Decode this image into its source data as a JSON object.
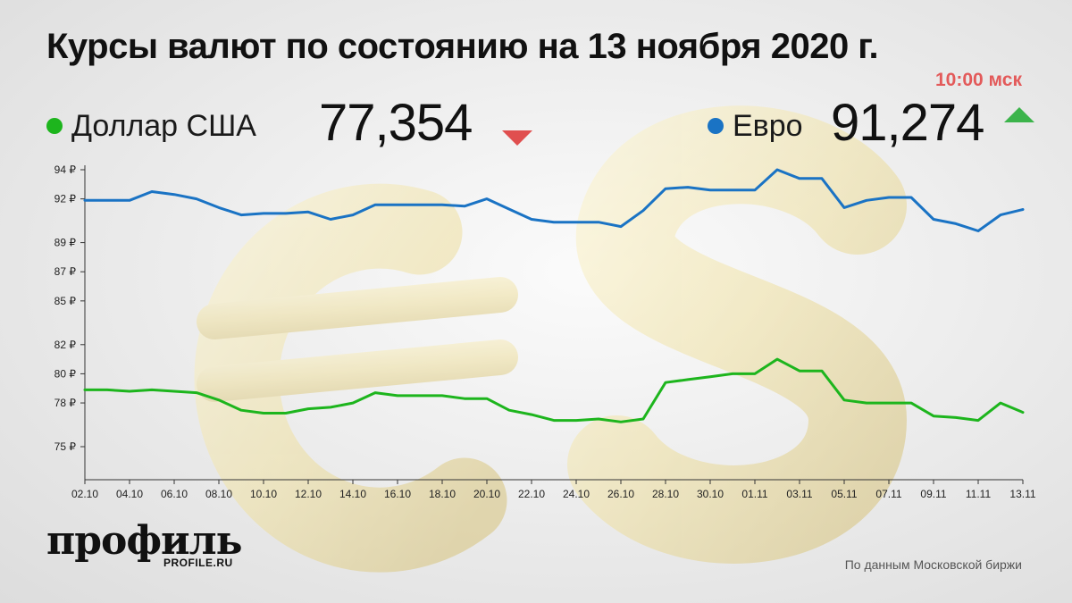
{
  "header": {
    "title": "Курсы валют по состоянию на 13 ноября 2020 г.",
    "time": "10:00 мск"
  },
  "legend": {
    "usd": {
      "name": "Доллар США",
      "value": "77,354",
      "trend": "down",
      "color": "#1db51d"
    },
    "eur": {
      "name": "Евро",
      "value": "91,274",
      "trend": "up",
      "color": "#1a73c4"
    }
  },
  "colors": {
    "down": "#e04f4f",
    "up": "#3cb44b",
    "usd_line": "#1db51d",
    "eur_line": "#1a73c4",
    "time": "#e35a5a"
  },
  "footer": {
    "logo": "профиль",
    "logo_sub": "PROFILE.RU",
    "source": "По данным Московской биржи"
  },
  "chart_data": {
    "type": "line",
    "title": "Курсы валют по состоянию на 13 ноября 2020 г.",
    "xlabel": "",
    "ylabel": "",
    "y_ticks": [
      "94 ₽",
      "92 ₽",
      "89 ₽",
      "87 ₽",
      "85 ₽",
      "82 ₽",
      "80 ₽",
      "78 ₽",
      "75 ₽"
    ],
    "y_tick_values": [
      94,
      92,
      89,
      87,
      85,
      82,
      80,
      78,
      75
    ],
    "x_tick_labels": [
      "02.10",
      "04.10",
      "06.10",
      "08.10",
      "10.10",
      "12.10",
      "14.10",
      "16.10",
      "18.10",
      "20.10",
      "22.10",
      "24.10",
      "26.10",
      "28.10",
      "30.10",
      "01.11",
      "03.11",
      "05.11",
      "07.11",
      "09.11",
      "11.11",
      "13.11"
    ],
    "ylim": [
      73,
      95
    ],
    "grid": false,
    "series": [
      {
        "name": "Евро",
        "values": [
          91.9,
          91.9,
          91.9,
          92.5,
          92.3,
          92.0,
          91.4,
          90.9,
          91.0,
          91.0,
          91.1,
          90.6,
          90.9,
          91.6,
          91.6,
          91.6,
          91.6,
          91.5,
          92.0,
          91.3,
          90.6,
          90.4,
          90.4,
          90.4,
          90.1,
          91.2,
          92.7,
          92.8,
          92.6,
          92.6,
          92.6,
          94.0,
          93.4,
          93.4,
          91.4,
          91.9,
          92.1,
          92.1,
          90.6,
          90.3,
          89.8,
          90.9,
          91.274
        ]
      },
      {
        "name": "Доллар США",
        "values": [
          78.9,
          78.9,
          78.8,
          78.9,
          78.8,
          78.7,
          78.2,
          77.5,
          77.3,
          77.3,
          77.6,
          77.7,
          78.0,
          78.7,
          78.5,
          78.5,
          78.5,
          78.3,
          78.3,
          77.5,
          77.2,
          76.8,
          76.8,
          76.9,
          76.7,
          76.9,
          79.4,
          79.6,
          79.8,
          80.0,
          80.0,
          81.0,
          80.2,
          80.2,
          78.2,
          78.0,
          78.0,
          78.0,
          77.1,
          77.0,
          76.8,
          78.0,
          77.354
        ]
      }
    ]
  }
}
